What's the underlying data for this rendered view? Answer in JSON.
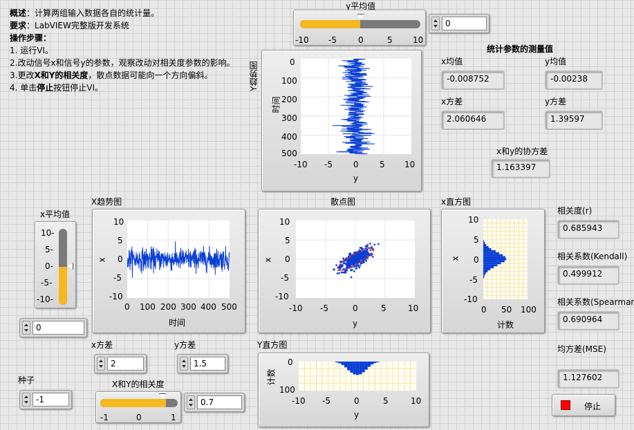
{
  "description": {
    "line1_label": "概述",
    "line1_text": "：计算两组输入数据各自的统计量。",
    "line2_label": "要求",
    "line2_text": "：LabVIEW完整版开发系统",
    "line3": "操作步骤：",
    "line4": "1.  运行VI。",
    "line5": "2.改动信号x和信号y的参数，观察改动对相关度参数的影响。",
    "line6_a": "3.更改",
    "line6_b": "X和Y的相关度",
    "line6_c": "，散点数据可能向一个方向偏斜。",
    "line7_a": "4. 单击",
    "line7_b": "停止",
    "line7_c": "按钮停止VI。"
  },
  "y_mean_slider": {
    "label": "y平均值",
    "value": 0,
    "range": [
      -10,
      10
    ],
    "ticks": [
      "-10",
      "-5",
      "0",
      "5",
      "10"
    ],
    "numeric": "0"
  },
  "x_mean_slider": {
    "label": "x平均值",
    "value": 0,
    "range": [
      -10,
      10
    ],
    "ticks": [
      "10-",
      "5-",
      "0-",
      "-5-",
      "-10-"
    ],
    "numeric": "0"
  },
  "correlation_slider": {
    "label": "X和Y的相关度",
    "value": 0.7,
    "range": [
      -1,
      1
    ],
    "ticks": [
      "-1",
      "0",
      "1"
    ],
    "numeric": "0.7"
  },
  "x_variance_ctl": {
    "label": "x方差",
    "value": "2"
  },
  "y_variance_ctl": {
    "label": "y方差",
    "value": "1.5"
  },
  "seed_ctl": {
    "label": "种子",
    "value": "-1"
  },
  "stats": {
    "title": "统计参数的测量值",
    "x_mean_label": "x均值",
    "x_mean": "-0.008752",
    "y_mean_label": "y均值",
    "y_mean": "-0.00238",
    "x_var_label": "x方差",
    "x_var": "2.060646",
    "y_var_label": "y方差",
    "y_var": "1.39597",
    "cov_label": "x和y的协方差",
    "cov": "1.163397"
  },
  "corr": {
    "r_label": "相关度(r)",
    "r": "0.685943",
    "kendall_label": "相关系数(Kendall)",
    "kendall": "0.499912",
    "spearman_label": "相关系数(Spearman)",
    "spearman": "0.690964",
    "mse_label": "均方差(MSE)",
    "mse": "1.127602"
  },
  "stop_button": {
    "label": "停止",
    "color": "#ff0000"
  },
  "colors": {
    "data": "#0a3fd6",
    "slider_fill": "#f5b820",
    "ellipse": "#e03030"
  },
  "charts": {
    "y_trend": {
      "title": "Y趋势图",
      "ylabel": "时间",
      "xlabel": "y",
      "xticks": [
        "-10",
        "-5",
        "0",
        "5",
        "10"
      ],
      "yticks": [
        "0",
        "100",
        "200",
        "300",
        "400",
        "500"
      ]
    },
    "x_trend": {
      "title": "X趋势图",
      "ylabel": "x",
      "xlabel": "时间",
      "xticks": [
        "0",
        "100",
        "200",
        "300",
        "400",
        "500"
      ],
      "yticks": [
        "10",
        "5",
        "0",
        "-5",
        "-10"
      ]
    },
    "scatter": {
      "title": "散点图",
      "ylabel": "x",
      "xlabel": "y",
      "xticks": [
        "-10",
        "-5",
        "0",
        "5",
        "10"
      ],
      "yticks": [
        "10",
        "5",
        "0",
        "-5",
        "-10"
      ]
    },
    "x_hist": {
      "title": "x直方图",
      "ylabel": "x",
      "xlabel": "计数",
      "xticks": [
        "0",
        "50",
        "100"
      ],
      "yticks": [
        "10",
        "5",
        "0",
        "-5",
        "-10"
      ]
    },
    "y_hist": {
      "title": "Y直方图",
      "ylabel": "计数",
      "xlabel": "y",
      "xticks": [
        "-10",
        "-5",
        "0",
        "5",
        "10"
      ],
      "yticks": [
        "0",
        "100"
      ]
    }
  },
  "chart_data": [
    {
      "type": "line",
      "title": "Y趋势图",
      "xlabel": "y",
      "ylabel": "时间",
      "xlim": [
        -10,
        10
      ],
      "ylim": [
        0,
        500
      ],
      "n": 500,
      "mean": 0,
      "variance": 1.5
    },
    {
      "type": "line",
      "title": "X趋势图",
      "xlabel": "时间",
      "ylabel": "x",
      "xlim": [
        0,
        500
      ],
      "ylim": [
        -10,
        10
      ],
      "n": 500,
      "mean": 0,
      "variance": 2
    },
    {
      "type": "scatter",
      "title": "散点图",
      "xlabel": "y",
      "ylabel": "x",
      "xlim": [
        -10,
        10
      ],
      "ylim": [
        -10,
        10
      ],
      "correlation": 0.7
    },
    {
      "type": "bar",
      "title": "x直方图",
      "xlabel": "计数",
      "ylabel": "x",
      "xlim": [
        0,
        100
      ],
      "ylim": [
        -10,
        10
      ],
      "bins": [
        -4.5,
        -4,
        -3.5,
        -3,
        -2.5,
        -2,
        -1.5,
        -1,
        -0.5,
        0,
        0.5,
        1,
        1.5,
        2,
        2.5,
        3,
        3.5,
        4,
        4.5
      ],
      "counts": [
        2,
        3,
        6,
        10,
        16,
        24,
        32,
        40,
        48,
        52,
        50,
        44,
        36,
        28,
        18,
        12,
        7,
        4,
        2
      ]
    },
    {
      "type": "bar",
      "title": "Y直方图",
      "xlabel": "y",
      "ylabel": "计数",
      "xlim": [
        -10,
        10
      ],
      "ylim": [
        0,
        100
      ],
      "bins": [
        -3.5,
        -3,
        -2.5,
        -2,
        -1.5,
        -1,
        -0.5,
        0,
        0.5,
        1,
        1.5,
        2,
        2.5,
        3,
        3.5
      ],
      "counts": [
        3,
        6,
        12,
        20,
        30,
        38,
        44,
        46,
        44,
        37,
        28,
        18,
        10,
        5,
        2
      ]
    }
  ]
}
